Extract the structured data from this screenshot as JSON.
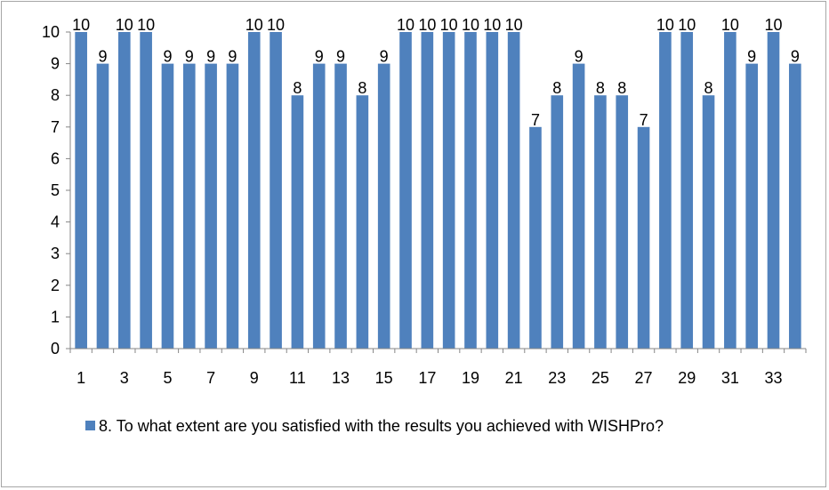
{
  "chart_data": {
    "type": "bar",
    "title": "",
    "xlabel": "",
    "ylabel": "",
    "categories": [
      "1",
      "2",
      "3",
      "4",
      "5",
      "6",
      "7",
      "8",
      "9",
      "10",
      "11",
      "12",
      "13",
      "14",
      "15",
      "16",
      "17",
      "18",
      "19",
      "20",
      "21",
      "22",
      "23",
      "24",
      "25",
      "26",
      "27",
      "28",
      "29",
      "30",
      "31",
      "32",
      "33",
      "34"
    ],
    "x_tick_labels": [
      "1",
      "3",
      "5",
      "7",
      "9",
      "11",
      "13",
      "15",
      "17",
      "19",
      "21",
      "23",
      "25",
      "27",
      "29",
      "31",
      "33"
    ],
    "y_tick_labels": [
      "0",
      "1",
      "2",
      "3",
      "4",
      "5",
      "6",
      "7",
      "8",
      "9",
      "10"
    ],
    "ylim": [
      0,
      10
    ],
    "grid": false,
    "legend_position": "bottom",
    "series": [
      {
        "name": "8. To what extent are you satisfied with the results you achieved with WISHPro?",
        "color": "#4f81bd",
        "values": [
          10,
          9,
          10,
          10,
          9,
          9,
          9,
          9,
          10,
          10,
          8,
          9,
          9,
          8,
          9,
          10,
          10,
          10,
          10,
          10,
          10,
          7,
          8,
          9,
          8,
          8,
          7,
          10,
          10,
          8,
          10,
          9,
          10,
          9
        ],
        "data_labels": [
          "10",
          "9",
          "10",
          "10",
          "9",
          "9",
          "9",
          "9",
          "10",
          "10",
          "8",
          "9",
          "9",
          "8",
          "9",
          "10",
          "10",
          "10",
          "10",
          "10",
          "10",
          "7",
          "8",
          "9",
          "8",
          "8",
          "7",
          "10",
          "10",
          "8",
          "10",
          "9",
          "10",
          "9"
        ]
      }
    ]
  }
}
